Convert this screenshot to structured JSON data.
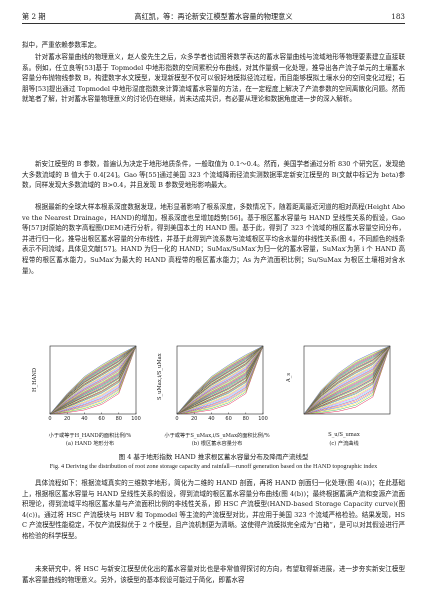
{
  "header": {
    "issue": "第 2 期",
    "running_title": "高红凯，等：再论新安江模型蓄水容量的物理意义",
    "page_number": "183"
  },
  "paragraphs": [
    "拟中，严重依赖参数率定。",
    "针对蓄水容量曲线的物理意义，赵人俊先生之后，众多学者也试图将数学表达的蓄水容量曲线与流域地形等物理要素建立直接联系。例如，任立良等[53]基于 Topmodel 中地形指数的空间累积分布曲线，对其作量纲一化处理，推导出各产流子单元的土壤蓄水容量分布抛物线参数 B，构建数字水文模型，发现新模型不仅可以很好地模拟径流过程，而且能够模拟土壤水分的空间变化过程；石朋等[53]提出通过 Topmodel 中地形湿度指数来计算流域蓄水容量的方法，在一定程度上解决了产流参数的空间离散化问题。然而就笔者了解，针对蓄水容量物理意义的讨论仍在继续，尚未达成共识，有必要从理论和数据角度进一步的深入解析。",
    "新安江模型的 B 参数，普遍认为决定于地形地质条件，一般取值为 0.1～0.4。然而，美国学者通过分析 830 个研究区，发现绝大多数流域的 B 值大于 0.4[24]。Gao 等[55]通过美国 323 个流域降雨径流实测数据率定新安江模型的 B(文献中标记为 beta)参数，同样发现大多数流域的 B>0.4，并且发现 B 参数受地形影响最大。",
    "根据最新的全球大样本根系深度数据发现，地形显著影响了根系深度，多数情况下，随着距离最近河道的相对高程(Height Above the Nearest Drainage，HAND)的增加，根系深度也呈增加趋势[56]。基于根区蓄水容量与 HAND 呈线性关系的假设，Gao 等[57]对原始的数字高程图(DEM)进行分析，得到美国本土的 HAND 图。基于此，得到了 323 个流域的根区蓄水容量空间分布，并进行归一化，推导出根区蓄水容量的分布线性，并基于此得到产流系数与流域根区平均含水量的非线性关系(图 4，不同颜色的线条表示不同流域，具体见文献[57]。HAND 为归一化的 HAND；SuMax/SuMax′为归一化的蓄水容量，SuMax′为第 i 个 HAND 高程带的根区蓄水能力，SuMax′为最大的 HAND 高程带的根区蓄水能力；As 为产流面积比例；Su/SuMax 为根区土壤相对含水量)。"
  ],
  "figure": {
    "panels": [
      {
        "ylabel": "H_HAND",
        "xlabel": "小于或等于H_HAND的面积比例/%",
        "sublabel": "(a) HAND 地形分布",
        "xticks": [
          "0",
          "20",
          "40",
          "60",
          "80",
          "100"
        ]
      },
      {
        "ylabel": "S_uMax,i/S_uMax",
        "xlabel": "小于或等于S_uMax,i/S_uMax的面积比例/%",
        "sublabel": "(b) 根区蓄水容量分布",
        "xticks": [
          "0",
          "20",
          "40",
          "60",
          "80",
          "100"
        ]
      },
      {
        "ylabel": "A_s",
        "xlabel": "S_u/S_umax",
        "sublabel": "(c) 产流曲线",
        "xticks": []
      }
    ],
    "caption_cn": "图 4   基于地形指数 HAND 推求根区蓄水容量分布及降雨产流线型",
    "caption_en": "Fig. 4    Deriving the distribution of root zone storage capacity and rainfall—runoff generation based on the HAND topographic index"
  },
  "chart_data": {
    "type": "line",
    "note_series": "many catchment curves, each in a different colour",
    "panels": [
      {
        "xlim": [
          0,
          100
        ],
        "ylim": [
          0,
          1
        ],
        "x": [
          0,
          20,
          40,
          60,
          80,
          100
        ],
        "y_low": [
          0,
          0.02,
          0.06,
          0.14,
          0.3,
          1.0
        ],
        "y_high": [
          0,
          0.3,
          0.55,
          0.72,
          0.87,
          1.0
        ]
      },
      {
        "xlim": [
          0,
          100
        ],
        "ylim": [
          0,
          1
        ],
        "x": [
          0,
          20,
          40,
          60,
          80,
          100
        ],
        "y_low": [
          0,
          0.02,
          0.06,
          0.14,
          0.3,
          1.0
        ],
        "y_high": [
          0,
          0.3,
          0.55,
          0.72,
          0.87,
          1.0
        ]
      },
      {
        "xlim": [
          0,
          1
        ],
        "ylim": [
          0,
          1
        ],
        "x": [
          0,
          0.2,
          0.4,
          0.6,
          0.8,
          1.0
        ],
        "y_low": [
          0,
          0.01,
          0.04,
          0.1,
          0.25,
          1.0
        ],
        "y_high": [
          0,
          0.35,
          0.6,
          0.78,
          0.9,
          1.0
        ]
      }
    ]
  },
  "paragraphs_after": [
    "具体流程如下：根据流域真实的三维数字地形，简化为二维的 HAND 剖面，再将 HAND 剖面归一化处理(图 4(a))；在此基础上，根据根区蓄水容量与 HAND 呈线性关系的假设，得到流域的根区蓄水容量分布曲线(图 4(b))；最终根据蓄满产流和变源产流面积理论，得到流域平均根区蓄水量与产流面积比例的非线性关系，即 HSC 产流模型(HAND-based Storage Capacity curve)(图 4(c))。通过将 HSC 产流模块与 HBV 和 Topmodel 等主流的产流模型对比，并应用于美国 323 个流域严格检验。结果发现，HSC 产流模型性能稳定，不仅产流模拟优于 2 个模型，且产流机制更为清晰。这使得产流模拟完全成为“白箱”，是可以对其假设进行严格检验的科学模型。",
    "未来研究中，将 HSC 与新安江模型优化出的蓄水容量对比也是非常值得探讨的方向，有望取得新进展，进一步夯实新安江模型蓄水容量曲线的物理意义。另外，该模型的基本假设可能过于简化，即蓄水容"
  ]
}
